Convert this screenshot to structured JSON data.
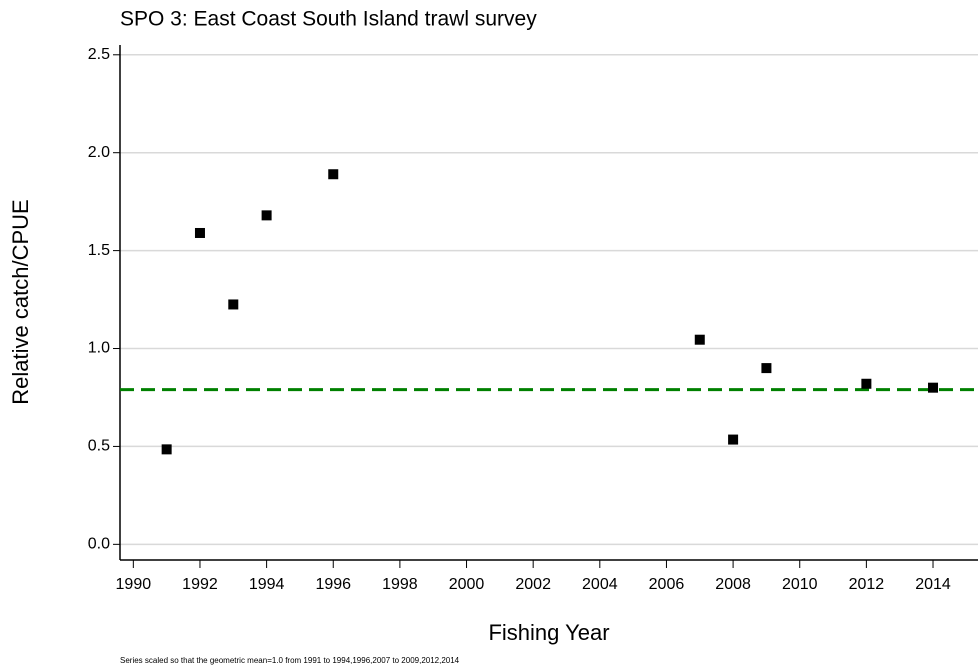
{
  "chart_data": {
    "type": "scatter",
    "title": "SPO 3: East Coast South Island trawl survey",
    "x_label": "Fishing Year",
    "y_label": "Relative catch/CPUE",
    "footnote": "Series scaled so that the geometric mean=1.0 from 1991 to 1994,1996,2007 to 2009,2012,2014",
    "x": [
      1991,
      1992,
      1993,
      1994,
      1996,
      2007,
      2008,
      2009,
      2012,
      2014
    ],
    "series": [
      {
        "color": "#000000",
        "values": [
          0.485,
          1.59,
          1.225,
          1.68,
          1.89,
          1.045,
          0.535,
          0.9,
          0.82,
          0.8
        ]
      }
    ],
    "reference_line": {
      "value": 0.79,
      "color": "#008000",
      "style": "dashed"
    },
    "xlim": [
      1989.6,
      2015.35
    ],
    "ylim": [
      -0.08,
      2.55
    ],
    "xticks": [
      1990,
      1992,
      1994,
      1996,
      1998,
      2000,
      2002,
      2004,
      2006,
      2008,
      2010,
      2012,
      2014
    ],
    "yticks": [
      {
        "value": 0,
        "label": "0.0"
      },
      0.5,
      {
        "value": 1,
        "label": "1.0"
      },
      1.5,
      {
        "value": 2,
        "label": "2.0"
      },
      2.5
    ],
    "grid": true
  }
}
